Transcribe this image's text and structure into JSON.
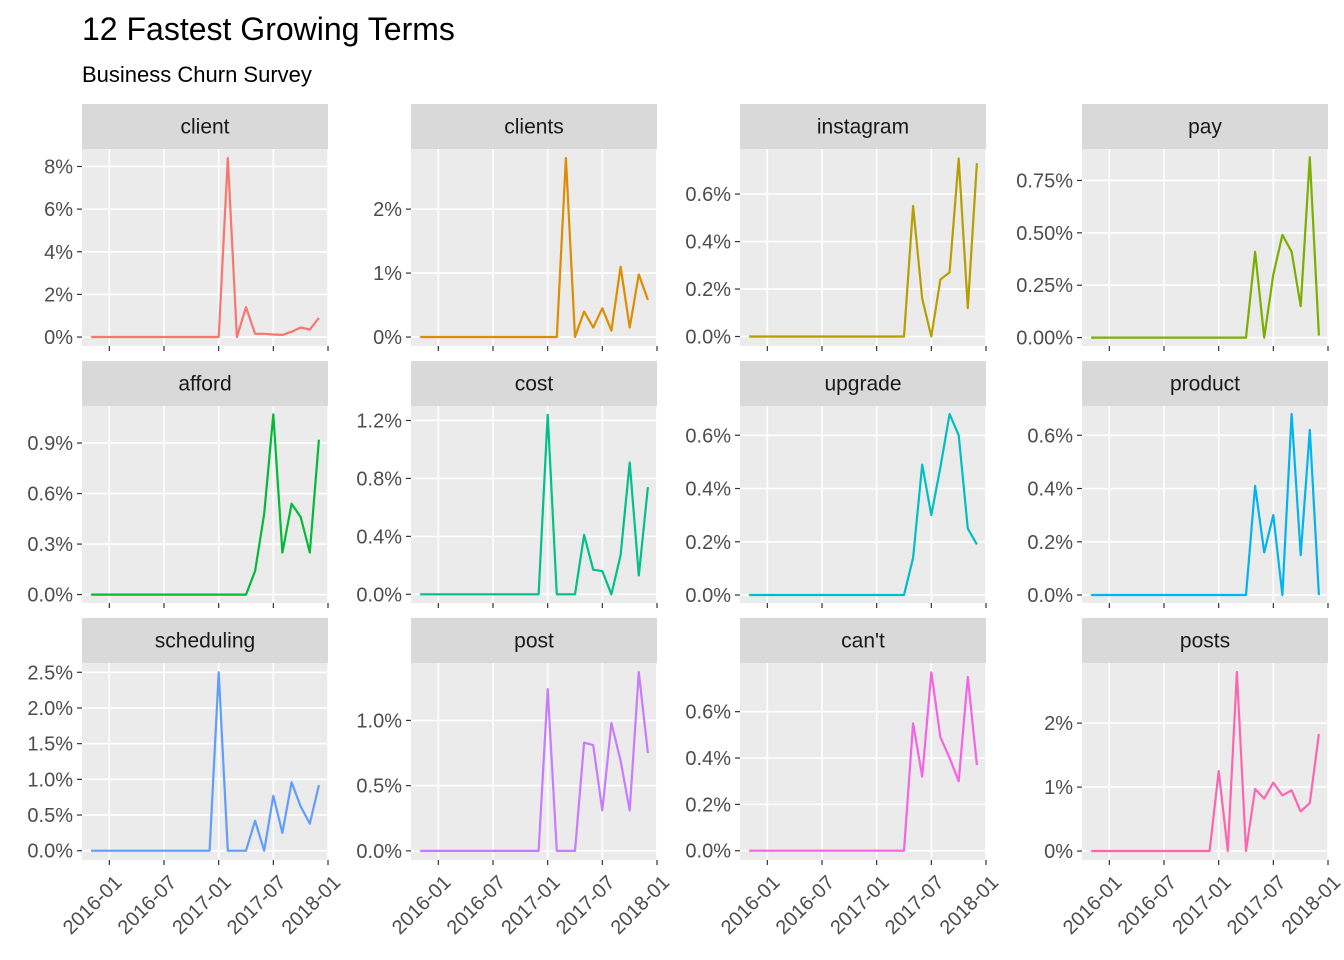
{
  "title": "12 Fastest Growing Terms",
  "subtitle": "Business Churn Survey",
  "chart_data": [
    {
      "type": "line",
      "title": "client",
      "color": "#F8766D",
      "x": [
        "2015-11",
        "2015-12",
        "2016-01",
        "2016-02",
        "2016-03",
        "2016-04",
        "2016-05",
        "2016-06",
        "2016-07",
        "2016-08",
        "2016-09",
        "2016-10",
        "2016-11",
        "2016-12",
        "2017-01",
        "2017-02",
        "2017-03",
        "2017-04",
        "2017-05",
        "2017-06",
        "2017-07",
        "2017-08",
        "2017-09",
        "2017-10",
        "2017-11",
        "2017-12"
      ],
      "values": [
        0,
        0,
        0,
        0,
        0,
        0,
        0,
        0,
        0,
        0,
        0,
        0,
        0,
        0,
        0,
        8.4,
        0,
        1.4,
        0.15,
        0.15,
        0.12,
        0.1,
        0.25,
        0.45,
        0.35,
        0.9
      ],
      "xlim": [
        "2015-10",
        "2018-01"
      ],
      "xticks": [
        "2016-01",
        "2016-07",
        "2017-01",
        "2017-07",
        "2018-01"
      ],
      "ylim": [
        -0.42,
        8.82
      ],
      "yticks": [
        {
          "value": 0,
          "label": "0%"
        },
        {
          "value": 2,
          "label": "2%"
        },
        {
          "value": 4,
          "label": "4%"
        },
        {
          "value": 6,
          "label": "6%"
        },
        {
          "value": 8,
          "label": "8%"
        }
      ],
      "grid": true
    },
    {
      "type": "line",
      "title": "clients",
      "color": "#DE8C00",
      "x": [
        "2015-11",
        "2015-12",
        "2016-01",
        "2016-02",
        "2016-03",
        "2016-04",
        "2016-05",
        "2016-06",
        "2016-07",
        "2016-08",
        "2016-09",
        "2016-10",
        "2016-11",
        "2016-12",
        "2017-01",
        "2017-02",
        "2017-03",
        "2017-04",
        "2017-05",
        "2017-06",
        "2017-07",
        "2017-08",
        "2017-09",
        "2017-10",
        "2017-11",
        "2017-12"
      ],
      "values": [
        0,
        0,
        0,
        0,
        0,
        0,
        0,
        0,
        0,
        0,
        0,
        0,
        0,
        0,
        0,
        0,
        2.8,
        0,
        0.4,
        0.15,
        0.45,
        0.1,
        1.1,
        0.15,
        0.98,
        0.58
      ],
      "xlim": [
        "2015-10",
        "2018-01"
      ],
      "xticks": [
        "2016-01",
        "2016-07",
        "2017-01",
        "2017-07",
        "2018-01"
      ],
      "ylim": [
        -0.14,
        2.94
      ],
      "yticks": [
        {
          "value": 0,
          "label": "0%"
        },
        {
          "value": 1,
          "label": "1%"
        },
        {
          "value": 2,
          "label": "2%"
        }
      ],
      "grid": true
    },
    {
      "type": "line",
      "title": "instagram",
      "color": "#B79F00",
      "x": [
        "2015-11",
        "2015-12",
        "2016-01",
        "2016-02",
        "2016-03",
        "2016-04",
        "2016-05",
        "2016-06",
        "2016-07",
        "2016-08",
        "2016-09",
        "2016-10",
        "2016-11",
        "2016-12",
        "2017-01",
        "2017-02",
        "2017-03",
        "2017-04",
        "2017-05",
        "2017-06",
        "2017-07",
        "2017-08",
        "2017-09",
        "2017-10",
        "2017-11",
        "2017-12"
      ],
      "values": [
        0,
        0,
        0,
        0,
        0,
        0,
        0,
        0,
        0,
        0,
        0,
        0,
        0,
        0,
        0,
        0,
        0,
        0,
        0.55,
        0.16,
        0,
        0.24,
        0.27,
        0.75,
        0.12,
        0.73
      ],
      "xlim": [
        "2015-10",
        "2018-01"
      ],
      "xticks": [
        "2016-01",
        "2016-07",
        "2017-01",
        "2017-07",
        "2018-01"
      ],
      "ylim": [
        -0.04,
        0.79
      ],
      "yticks": [
        {
          "value": 0,
          "label": "0.0%"
        },
        {
          "value": 0.2,
          "label": "0.2%"
        },
        {
          "value": 0.4,
          "label": "0.4%"
        },
        {
          "value": 0.6,
          "label": "0.6%"
        }
      ],
      "grid": true
    },
    {
      "type": "line",
      "title": "pay",
      "color": "#7CAE00",
      "x": [
        "2015-11",
        "2015-12",
        "2016-01",
        "2016-02",
        "2016-03",
        "2016-04",
        "2016-05",
        "2016-06",
        "2016-07",
        "2016-08",
        "2016-09",
        "2016-10",
        "2016-11",
        "2016-12",
        "2017-01",
        "2017-02",
        "2017-03",
        "2017-04",
        "2017-05",
        "2017-06",
        "2017-07",
        "2017-08",
        "2017-09",
        "2017-10",
        "2017-11",
        "2017-12"
      ],
      "values": [
        0,
        0,
        0,
        0,
        0,
        0,
        0,
        0,
        0,
        0,
        0,
        0,
        0,
        0,
        0,
        0,
        0,
        0,
        0.41,
        0,
        0.3,
        0.49,
        0.41,
        0.15,
        0.86,
        0.01
      ],
      "xlim": [
        "2015-10",
        "2018-01"
      ],
      "xticks": [
        "2016-01",
        "2016-07",
        "2017-01",
        "2017-07",
        "2018-01"
      ],
      "ylim": [
        -0.04,
        0.9
      ],
      "yticks": [
        {
          "value": 0,
          "label": "0.00%"
        },
        {
          "value": 0.25,
          "label": "0.25%"
        },
        {
          "value": 0.5,
          "label": "0.50%"
        },
        {
          "value": 0.75,
          "label": "0.75%"
        }
      ],
      "grid": true
    },
    {
      "type": "line",
      "title": "afford",
      "color": "#00BA38",
      "x": [
        "2015-11",
        "2015-12",
        "2016-01",
        "2016-02",
        "2016-03",
        "2016-04",
        "2016-05",
        "2016-06",
        "2016-07",
        "2016-08",
        "2016-09",
        "2016-10",
        "2016-11",
        "2016-12",
        "2017-01",
        "2017-02",
        "2017-03",
        "2017-04",
        "2017-05",
        "2017-06",
        "2017-07",
        "2017-08",
        "2017-09",
        "2017-10",
        "2017-11",
        "2017-12"
      ],
      "values": [
        0,
        0,
        0,
        0,
        0,
        0,
        0,
        0,
        0,
        0,
        0,
        0,
        0,
        0,
        0,
        0,
        0,
        0,
        0.14,
        0.48,
        1.07,
        0.25,
        0.54,
        0.46,
        0.25,
        0.92
      ],
      "xlim": [
        "2015-10",
        "2018-01"
      ],
      "xticks": [
        "2016-01",
        "2016-07",
        "2017-01",
        "2017-07",
        "2018-01"
      ],
      "ylim": [
        -0.05,
        1.12
      ],
      "yticks": [
        {
          "value": 0,
          "label": "0.0%"
        },
        {
          "value": 0.3,
          "label": "0.3%"
        },
        {
          "value": 0.6,
          "label": "0.6%"
        },
        {
          "value": 0.9,
          "label": "0.9%"
        }
      ],
      "grid": true
    },
    {
      "type": "line",
      "title": "cost",
      "color": "#00C08B",
      "x": [
        "2015-11",
        "2015-12",
        "2016-01",
        "2016-02",
        "2016-03",
        "2016-04",
        "2016-05",
        "2016-06",
        "2016-07",
        "2016-08",
        "2016-09",
        "2016-10",
        "2016-11",
        "2016-12",
        "2017-01",
        "2017-02",
        "2017-03",
        "2017-04",
        "2017-05",
        "2017-06",
        "2017-07",
        "2017-08",
        "2017-09",
        "2017-10",
        "2017-11",
        "2017-12"
      ],
      "values": [
        0,
        0,
        0,
        0,
        0,
        0,
        0,
        0,
        0,
        0,
        0,
        0,
        0,
        0,
        1.24,
        0,
        0,
        0,
        0.41,
        0.17,
        0.16,
        0,
        0.27,
        0.91,
        0.13,
        0.74
      ],
      "xlim": [
        "2015-10",
        "2018-01"
      ],
      "xticks": [
        "2016-01",
        "2016-07",
        "2017-01",
        "2017-07",
        "2018-01"
      ],
      "ylim": [
        -0.06,
        1.3
      ],
      "yticks": [
        {
          "value": 0,
          "label": "0.0%"
        },
        {
          "value": 0.4,
          "label": "0.4%"
        },
        {
          "value": 0.8,
          "label": "0.8%"
        },
        {
          "value": 1.2,
          "label": "1.2%"
        }
      ],
      "grid": true
    },
    {
      "type": "line",
      "title": "upgrade",
      "color": "#00BFC4",
      "x": [
        "2015-11",
        "2015-12",
        "2016-01",
        "2016-02",
        "2016-03",
        "2016-04",
        "2016-05",
        "2016-06",
        "2016-07",
        "2016-08",
        "2016-09",
        "2016-10",
        "2016-11",
        "2016-12",
        "2017-01",
        "2017-02",
        "2017-03",
        "2017-04",
        "2017-05",
        "2017-06",
        "2017-07",
        "2017-08",
        "2017-09",
        "2017-10",
        "2017-11",
        "2017-12"
      ],
      "values": [
        0,
        0,
        0,
        0,
        0,
        0,
        0,
        0,
        0,
        0,
        0,
        0,
        0,
        0,
        0,
        0,
        0,
        0,
        0.14,
        0.49,
        0.3,
        0.48,
        0.68,
        0.6,
        0.25,
        0.19
      ],
      "xlim": [
        "2015-10",
        "2018-01"
      ],
      "xticks": [
        "2016-01",
        "2016-07",
        "2017-01",
        "2017-07",
        "2018-01"
      ],
      "ylim": [
        -0.03,
        0.71
      ],
      "yticks": [
        {
          "value": 0,
          "label": "0.0%"
        },
        {
          "value": 0.2,
          "label": "0.2%"
        },
        {
          "value": 0.4,
          "label": "0.4%"
        },
        {
          "value": 0.6,
          "label": "0.6%"
        }
      ],
      "grid": true
    },
    {
      "type": "line",
      "title": "product",
      "color": "#00B4F0",
      "x": [
        "2015-11",
        "2015-12",
        "2016-01",
        "2016-02",
        "2016-03",
        "2016-04",
        "2016-05",
        "2016-06",
        "2016-07",
        "2016-08",
        "2016-09",
        "2016-10",
        "2016-11",
        "2016-12",
        "2017-01",
        "2017-02",
        "2017-03",
        "2017-04",
        "2017-05",
        "2017-06",
        "2017-07",
        "2017-08",
        "2017-09",
        "2017-10",
        "2017-11",
        "2017-12"
      ],
      "values": [
        0,
        0,
        0,
        0,
        0,
        0,
        0,
        0,
        0,
        0,
        0,
        0,
        0,
        0,
        0,
        0,
        0,
        0,
        0.41,
        0.16,
        0.3,
        0,
        0.68,
        0.15,
        0.62,
        0
      ],
      "xlim": [
        "2015-10",
        "2018-01"
      ],
      "xticks": [
        "2016-01",
        "2016-07",
        "2017-01",
        "2017-07",
        "2018-01"
      ],
      "ylim": [
        -0.03,
        0.71
      ],
      "yticks": [
        {
          "value": 0,
          "label": "0.0%"
        },
        {
          "value": 0.2,
          "label": "0.2%"
        },
        {
          "value": 0.4,
          "label": "0.4%"
        },
        {
          "value": 0.6,
          "label": "0.6%"
        }
      ],
      "grid": true
    },
    {
      "type": "line",
      "title": "scheduling",
      "color": "#619CFF",
      "x": [
        "2015-11",
        "2015-12",
        "2016-01",
        "2016-02",
        "2016-03",
        "2016-04",
        "2016-05",
        "2016-06",
        "2016-07",
        "2016-08",
        "2016-09",
        "2016-10",
        "2016-11",
        "2016-12",
        "2017-01",
        "2017-02",
        "2017-03",
        "2017-04",
        "2017-05",
        "2017-06",
        "2017-07",
        "2017-08",
        "2017-09",
        "2017-10",
        "2017-11",
        "2017-12"
      ],
      "values": [
        0,
        0,
        0,
        0,
        0,
        0,
        0,
        0,
        0,
        0,
        0,
        0,
        0,
        0,
        2.5,
        0,
        0,
        0,
        0.42,
        0,
        0.77,
        0.25,
        0.96,
        0.62,
        0.38,
        0.92
      ],
      "xlim": [
        "2015-10",
        "2018-01"
      ],
      "xticks": [
        "2016-01",
        "2016-07",
        "2017-01",
        "2017-07",
        "2018-01"
      ],
      "ylim": [
        -0.13,
        2.63
      ],
      "yticks": [
        {
          "value": 0,
          "label": "0.0%"
        },
        {
          "value": 0.5,
          "label": "0.5%"
        },
        {
          "value": 1,
          "label": "1.0%"
        },
        {
          "value": 1.5,
          "label": "1.5%"
        },
        {
          "value": 2,
          "label": "2.0%"
        },
        {
          "value": 2.5,
          "label": "2.5%"
        }
      ],
      "grid": true
    },
    {
      "type": "line",
      "title": "post",
      "color": "#C77CFF",
      "x": [
        "2015-11",
        "2015-12",
        "2016-01",
        "2016-02",
        "2016-03",
        "2016-04",
        "2016-05",
        "2016-06",
        "2016-07",
        "2016-08",
        "2016-09",
        "2016-10",
        "2016-11",
        "2016-12",
        "2017-01",
        "2017-02",
        "2017-03",
        "2017-04",
        "2017-05",
        "2017-06",
        "2017-07",
        "2017-08",
        "2017-09",
        "2017-10",
        "2017-11",
        "2017-12"
      ],
      "values": [
        0,
        0,
        0,
        0,
        0,
        0,
        0,
        0,
        0,
        0,
        0,
        0,
        0,
        0,
        1.24,
        0,
        0,
        0,
        0.83,
        0.81,
        0.31,
        0.98,
        0.69,
        0.31,
        1.37,
        0.75
      ],
      "xlim": [
        "2015-10",
        "2018-01"
      ],
      "xticks": [
        "2016-01",
        "2016-07",
        "2017-01",
        "2017-07",
        "2018-01"
      ],
      "ylim": [
        -0.07,
        1.44
      ],
      "yticks": [
        {
          "value": 0,
          "label": "0.0%"
        },
        {
          "value": 0.5,
          "label": "0.5%"
        },
        {
          "value": 1,
          "label": "1.0%"
        }
      ],
      "grid": true
    },
    {
      "type": "line",
      "title": "can't",
      "color": "#F564E3",
      "x": [
        "2015-11",
        "2015-12",
        "2016-01",
        "2016-02",
        "2016-03",
        "2016-04",
        "2016-05",
        "2016-06",
        "2016-07",
        "2016-08",
        "2016-09",
        "2016-10",
        "2016-11",
        "2016-12",
        "2017-01",
        "2017-02",
        "2017-03",
        "2017-04",
        "2017-05",
        "2017-06",
        "2017-07",
        "2017-08",
        "2017-09",
        "2017-10",
        "2017-11",
        "2017-12"
      ],
      "values": [
        0,
        0,
        0,
        0,
        0,
        0,
        0,
        0,
        0,
        0,
        0,
        0,
        0,
        0,
        0,
        0,
        0,
        0,
        0.55,
        0.32,
        0.77,
        0.49,
        0.4,
        0.3,
        0.75,
        0.37
      ],
      "xlim": [
        "2015-10",
        "2018-01"
      ],
      "xticks": [
        "2016-01",
        "2016-07",
        "2017-01",
        "2017-07",
        "2018-01"
      ],
      "ylim": [
        -0.04,
        0.81
      ],
      "yticks": [
        {
          "value": 0,
          "label": "0.0%"
        },
        {
          "value": 0.2,
          "label": "0.2%"
        },
        {
          "value": 0.4,
          "label": "0.4%"
        },
        {
          "value": 0.6,
          "label": "0.6%"
        }
      ],
      "grid": true
    },
    {
      "type": "line",
      "title": "posts",
      "color": "#FF64B0",
      "x": [
        "2015-11",
        "2015-12",
        "2016-01",
        "2016-02",
        "2016-03",
        "2016-04",
        "2016-05",
        "2016-06",
        "2016-07",
        "2016-08",
        "2016-09",
        "2016-10",
        "2016-11",
        "2016-12",
        "2017-01",
        "2017-02",
        "2017-03",
        "2017-04",
        "2017-05",
        "2017-06",
        "2017-07",
        "2017-08",
        "2017-09",
        "2017-10",
        "2017-11",
        "2017-12"
      ],
      "values": [
        0,
        0,
        0,
        0,
        0,
        0,
        0,
        0,
        0,
        0,
        0,
        0,
        0,
        0,
        1.25,
        0,
        2.8,
        0,
        0.97,
        0.82,
        1.07,
        0.87,
        0.95,
        0.62,
        0.75,
        1.83
      ],
      "xlim": [
        "2015-10",
        "2018-01"
      ],
      "xticks": [
        "2016-01",
        "2016-07",
        "2017-01",
        "2017-07",
        "2018-01"
      ],
      "ylim": [
        -0.14,
        2.94
      ],
      "yticks": [
        {
          "value": 0,
          "label": "0%"
        },
        {
          "value": 1,
          "label": "1%"
        },
        {
          "value": 2,
          "label": "2%"
        }
      ],
      "grid": true
    }
  ]
}
